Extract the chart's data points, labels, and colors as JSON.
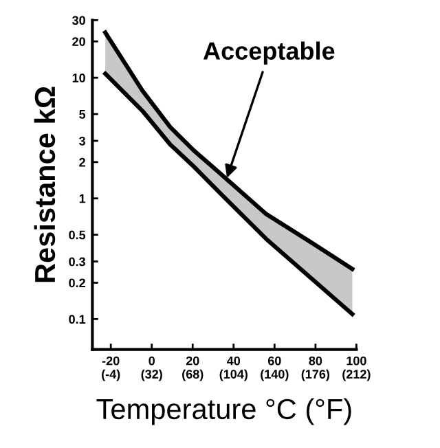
{
  "chart_data": {
    "type": "line",
    "xlabel": "Temperature °C (°F)",
    "ylabel": "Resistance kΩ",
    "x": [
      -22.7,
      -4.5,
      9,
      20.5,
      34,
      56,
      79,
      98
    ],
    "series": [
      {
        "color": "#000000",
        "values": [
          23.7,
          7.8,
          3.9,
          2.5,
          1.58,
          0.74,
          0.42,
          0.26
        ],
        "lower": [
          10.8,
          5.3,
          2.8,
          1.84,
          1.08,
          0.46,
          0.21,
          0.11
        ],
        "upper": [
          23.7,
          7.8,
          3.9,
          2.5,
          1.58,
          0.74,
          0.42,
          0.26
        ]
      },
      {
        "color": "#000000",
        "values": [
          10.8,
          5.3,
          2.8,
          1.84,
          1.08,
          0.46,
          0.21,
          0.11
        ]
      }
    ],
    "annotations": [
      "Acceptable"
    ],
    "log": true,
    "grid": false,
    "line_style": "solid",
    "marker": "none",
    "xlim": [
      -29,
      100
    ],
    "ylim": [
      0.056,
      30
    ],
    "xticks": [
      -20,
      0,
      20,
      40,
      60,
      80,
      100
    ],
    "x2lim": [
      -20.2,
      212
    ],
    "x2ticks": [
      {
        "value": -4,
        "label": "(-4)"
      },
      {
        "value": 32,
        "label": "(32)"
      },
      {
        "value": 68,
        "label": "(68)"
      },
      {
        "value": 104,
        "label": "(104)"
      },
      {
        "value": 140,
        "label": "(140)"
      },
      {
        "value": 176,
        "label": "(176)"
      },
      {
        "value": 212,
        "label": "(212)"
      }
    ],
    "yticks": [
      0.1,
      0.2,
      0.3,
      0.5,
      1,
      2,
      3,
      5,
      10,
      20,
      30
    ]
  }
}
